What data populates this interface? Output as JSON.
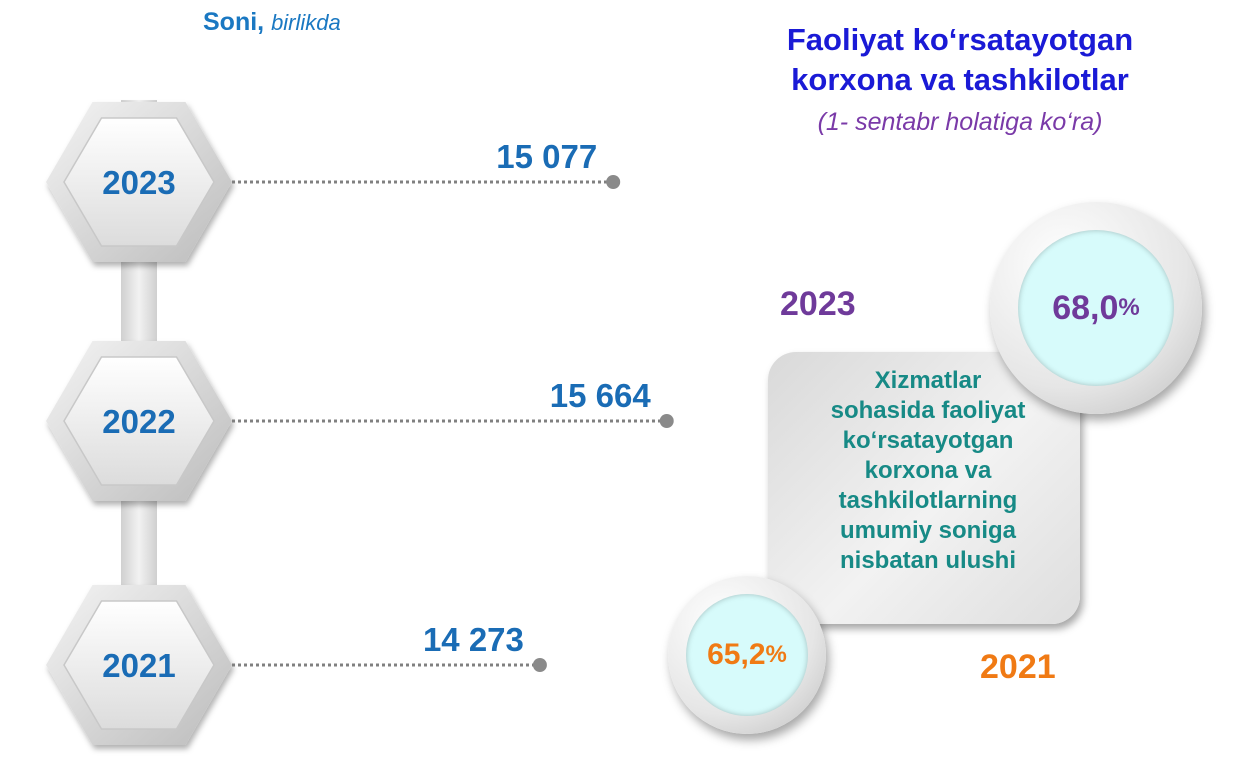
{
  "header": {
    "unit_bold": "Soni,",
    "unit_italic": "birlikda",
    "title_line1": "Faoliyat ko‘rsatayotgan",
    "title_line2": "korxona va tashkilotlar",
    "subtitle": "(1- sentabr holatiga ko‘ra)"
  },
  "chart_data": [
    {
      "type": "bar",
      "categories": [
        "2023",
        "2022",
        "2021"
      ],
      "values": [
        15077,
        15664,
        14273
      ],
      "value_labels": [
        "15 077",
        "15 664",
        "14 273"
      ],
      "title": "Faoliyat ko‘rsatayotgan korxona va tashkilotlar",
      "subtitle": "(1- sentabr holatiga ko‘ra)",
      "ylabel": "Soni, birlikda",
      "xlim": [
        14000,
        15700
      ]
    },
    {
      "type": "table",
      "title": "Xizmatlar sohasida faoliyat ko‘rsatayotgan korxona va tashkilotlarning umumiy  soniga nisbatan ulushi",
      "categories": [
        "2023",
        "2021"
      ],
      "values": [
        68.0,
        65.2
      ],
      "value_labels": [
        "68,0",
        "65,2"
      ],
      "unit": "%"
    }
  ],
  "share": {
    "description": "Xizmatlar sohasida faoliyat ko‘rsatayotgan korxona va tashkilotlarning umumiy  soniga nisbatan ulushi",
    "lines": [
      "Xizmatlar",
      "sohasida faoliyat",
      "ko‘rsatayotgan",
      "korxona va",
      "tashkilotlarning",
      "umumiy  soniga",
      "nisbatan ulushi"
    ],
    "year_2023": "2023",
    "value_2023": "68,0",
    "year_2021": "2021",
    "value_2021": "65,2",
    "pct_sign": "%"
  },
  "colors": {
    "year_blue": "#1a6cb5",
    "title_blue": "#1a1ad6",
    "subtitle_purple": "#7a3aa8",
    "accent_2023": "#6f3a9a",
    "accent_2021": "#f07a14",
    "card_text": "#178a86",
    "circle_fill": "#d7fbfb"
  }
}
